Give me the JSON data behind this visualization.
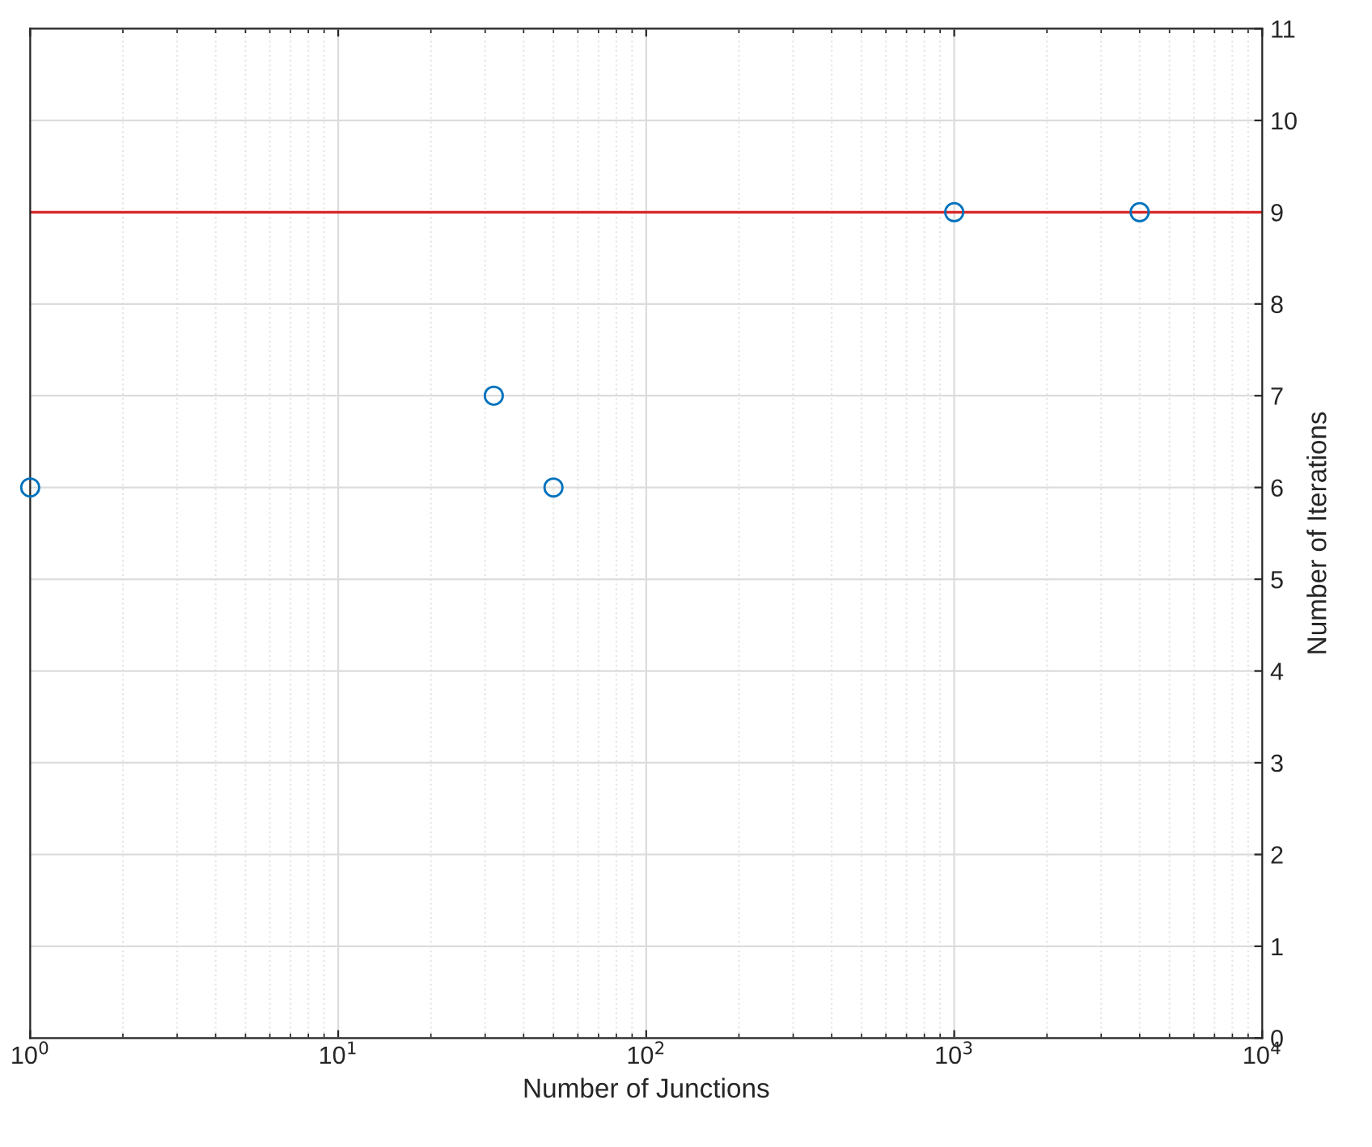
{
  "chart_data": {
    "type": "scatter",
    "xlabel": "Number of Junctions",
    "ylabel": "Number of Iterations",
    "x": [
      1,
      32,
      50,
      1000,
      4000
    ],
    "series": [
      {
        "color": "#0072bd",
        "values": [
          6,
          7,
          6,
          9,
          9
        ]
      }
    ],
    "marker": "circle",
    "log": "x",
    "xlim": [
      1,
      10000
    ],
    "xticks": [
      {
        "value": 1,
        "label": "10$^{0}$"
      },
      {
        "value": 10,
        "label": "10$^{1}$"
      },
      {
        "value": 100,
        "label": "10$^{2}$"
      },
      {
        "value": 1000,
        "label": "10$^{3}$"
      },
      {
        "value": 10000,
        "label": "10$^{4}$"
      }
    ],
    "ylim": [
      0,
      11
    ],
    "yticks": [
      0,
      1,
      2,
      3,
      4,
      5,
      6,
      7,
      8,
      9,
      10,
      11
    ],
    "ref_lines": [
      {
        "axis": "y",
        "value": 9,
        "color": "#d62728"
      }
    ],
    "grid": true
  }
}
